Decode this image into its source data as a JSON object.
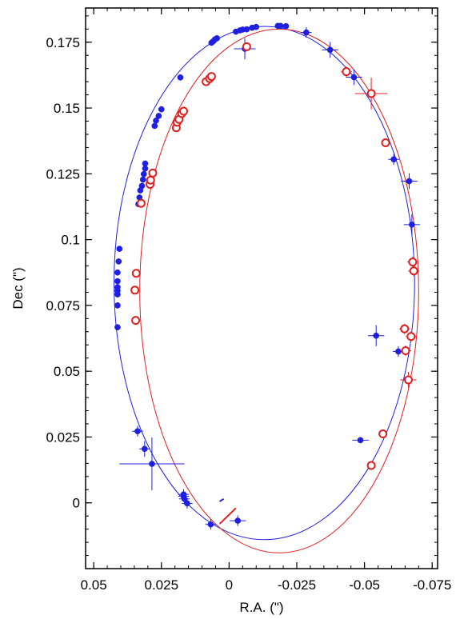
{
  "chart_data": {
    "type": "scatter",
    "title": "",
    "xlabel": "R.A. (\")",
    "ylabel": "Dec (\")",
    "xlim": [
      0.053,
      -0.077
    ],
    "ylim": [
      -0.025,
      0.188
    ],
    "x_inverted": true,
    "grid": false,
    "xticks": [
      {
        "value": 0.05,
        "label": "0.05"
      },
      {
        "value": 0.025,
        "label": "0.025"
      },
      {
        "value": 0,
        "label": "0"
      },
      {
        "value": -0.025,
        "label": "-0.025"
      },
      {
        "value": -0.05,
        "label": "-0.05"
      },
      {
        "value": -0.075,
        "label": "-0.075"
      }
    ],
    "yticks": [
      {
        "value": 0,
        "label": "0"
      },
      {
        "value": 0.025,
        "label": "0.025"
      },
      {
        "value": 0.05,
        "label": "0.05"
      },
      {
        "value": 0.075,
        "label": "0.075"
      },
      {
        "value": 0.1,
        "label": "0.1"
      },
      {
        "value": 0.125,
        "label": "0.125"
      },
      {
        "value": 0.15,
        "label": "0.15"
      },
      {
        "value": 0.175,
        "label": "0.175"
      }
    ],
    "series": [
      {
        "marker": "filled-circle",
        "color": "#1f1fe0",
        "points": [
          {
            "x": 0.0412,
            "y": 0.0667
          },
          {
            "x": 0.0412,
            "y": 0.075
          },
          {
            "x": 0.0412,
            "y": 0.0792
          },
          {
            "x": 0.0412,
            "y": 0.0806
          },
          {
            "x": 0.0412,
            "y": 0.0819
          },
          {
            "x": 0.0412,
            "y": 0.0842
          },
          {
            "x": 0.0412,
            "y": 0.0875
          },
          {
            "x": 0.0408,
            "y": 0.0917
          },
          {
            "x": 0.0405,
            "y": 0.0965
          },
          {
            "x": 0.0335,
            "y": 0.1135
          },
          {
            "x": 0.0331,
            "y": 0.116
          },
          {
            "x": 0.0328,
            "y": 0.1187
          },
          {
            "x": 0.0322,
            "y": 0.1204
          },
          {
            "x": 0.0318,
            "y": 0.1228
          },
          {
            "x": 0.0315,
            "y": 0.1249
          },
          {
            "x": 0.031,
            "y": 0.127
          },
          {
            "x": 0.031,
            "y": 0.1289
          },
          {
            "x": 0.0275,
            "y": 0.1432
          },
          {
            "x": 0.027,
            "y": 0.1452
          },
          {
            "x": 0.026,
            "y": 0.147
          },
          {
            "x": 0.025,
            "y": 0.1495
          },
          {
            "x": 0.018,
            "y": 0.1616
          },
          {
            "x": 0.0065,
            "y": 0.1748
          },
          {
            "x": 0.0058,
            "y": 0.1754
          },
          {
            "x": 0.0052,
            "y": 0.1761
          },
          {
            "x": 0.0045,
            "y": 0.1765
          },
          {
            "x": -0.0025,
            "y": 0.179
          },
          {
            "x": -0.004,
            "y": 0.1795
          },
          {
            "x": -0.005,
            "y": 0.1798
          },
          {
            "x": -0.0065,
            "y": 0.1799
          },
          {
            "x": -0.0085,
            "y": 0.1805
          },
          {
            "x": -0.01,
            "y": 0.1808
          },
          {
            "x": -0.018,
            "y": 0.1812
          },
          {
            "x": -0.019,
            "y": 0.1812
          },
          {
            "x": -0.021,
            "y": 0.1811
          },
          {
            "x": -0.0058,
            "y": 0.1725,
            "xerr": 0.004,
            "yerr": 0.004
          },
          {
            "x": -0.0285,
            "y": 0.1787,
            "xerr": 0.002,
            "yerr": 0.002
          },
          {
            "x": -0.0373,
            "y": 0.1721,
            "xerr": 0.003,
            "yerr": 0.003
          },
          {
            "x": -0.0461,
            "y": 0.1617,
            "xerr": 0.003,
            "yerr": 0.003
          },
          {
            "x": -0.0608,
            "y": 0.1305,
            "xerr": 0.002,
            "yerr": 0.002
          },
          {
            "x": -0.0665,
            "y": 0.1222,
            "xerr": 0.003,
            "yerr": 0.003
          },
          {
            "x": -0.0675,
            "y": 0.1057,
            "xerr": 0.003,
            "yerr": 0.004
          },
          {
            "x": -0.0543,
            "y": 0.0635,
            "xerr": 0.003,
            "yerr": 0.004
          },
          {
            "x": -0.0625,
            "y": 0.0575,
            "xerr": 0.002,
            "yerr": 0.002
          },
          {
            "x": -0.0485,
            "y": 0.0238,
            "xerr": 0.003,
            "yerr": 0.001
          },
          {
            "x": 0.0338,
            "y": 0.0272,
            "xerr": 0.002,
            "yerr": 0.002
          },
          {
            "x": 0.0312,
            "y": 0.0205,
            "xerr": 0.002,
            "yerr": 0.003
          },
          {
            "x": 0.0285,
            "y": 0.0148,
            "xerr": 0.012,
            "yerr": 0.01
          },
          {
            "x": 0.0168,
            "y": 0.0032,
            "xerr": 0.002,
            "yerr": 0.002
          },
          {
            "x": 0.0165,
            "y": 0.0015,
            "xerr": 0.002,
            "yerr": 0.002
          },
          {
            "x": 0.0168,
            "y": 0.0025,
            "xerr": 0.002,
            "yerr": 0.002
          },
          {
            "x": 0.0155,
            "y": -0.0002,
            "xerr": 0.002,
            "yerr": 0.002
          },
          {
            "x": 0.0068,
            "y": -0.0082,
            "xerr": 0.002,
            "yerr": 0.002
          },
          {
            "x": -0.0032,
            "y": -0.0068,
            "xerr": 0.003,
            "yerr": 0.002
          }
        ]
      },
      {
        "marker": "open-circle",
        "color": "#e01f1f",
        "points": [
          {
            "x": 0.0345,
            "y": 0.0693
          },
          {
            "x": 0.0348,
            "y": 0.0808
          },
          {
            "x": 0.0343,
            "y": 0.0872
          },
          {
            "x": 0.0325,
            "y": 0.1138
          },
          {
            "x": 0.0292,
            "y": 0.121
          },
          {
            "x": 0.029,
            "y": 0.1226
          },
          {
            "x": 0.0282,
            "y": 0.1253
          },
          {
            "x": 0.0195,
            "y": 0.1425
          },
          {
            "x": 0.0192,
            "y": 0.1446
          },
          {
            "x": 0.0185,
            "y": 0.1457
          },
          {
            "x": 0.0175,
            "y": 0.1479
          },
          {
            "x": 0.0168,
            "y": 0.1488
          },
          {
            "x": 0.0085,
            "y": 0.16
          },
          {
            "x": 0.0072,
            "y": 0.1612
          },
          {
            "x": 0.0065,
            "y": 0.162
          },
          {
            "x": -0.0065,
            "y": 0.1733
          },
          {
            "x": -0.0433,
            "y": 0.1638,
            "xerr": 0.002,
            "yerr": 0.002
          },
          {
            "x": -0.0525,
            "y": 0.1555,
            "xerr": 0.006,
            "yerr": 0.006
          },
          {
            "x": -0.0578,
            "y": 0.1368,
            "xerr": 0.001,
            "yerr": 0.001
          },
          {
            "x": -0.0678,
            "y": 0.0915,
            "xerr": 0.002,
            "yerr": 0.002
          },
          {
            "x": -0.0682,
            "y": 0.0881,
            "xerr": 0.002,
            "yerr": 0.002
          },
          {
            "x": -0.0648,
            "y": 0.0661,
            "xerr": 0.002,
            "yerr": 0.002
          },
          {
            "x": -0.0672,
            "y": 0.0632,
            "xerr": 0.002,
            "yerr": 0.002
          },
          {
            "x": -0.0652,
            "y": 0.0578,
            "xerr": 0.002,
            "yerr": 0.002
          },
          {
            "x": -0.0662,
            "y": 0.0467,
            "xerr": 0.003,
            "yerr": 0.003
          },
          {
            "x": -0.0568,
            "y": 0.0262,
            "xerr": 0.001,
            "yerr": 0.001
          },
          {
            "x": -0.0525,
            "y": 0.0142,
            "xerr": 0.001,
            "yerr": 0.001
          }
        ]
      }
    ],
    "orbits": [
      {
        "color": "#1f1fe0",
        "center": [
          -0.013,
          0.0835
        ],
        "semi_x": 0.0555,
        "semi_y": 0.0975
      },
      {
        "color": "#e01f1f",
        "center": [
          -0.0185,
          0.0805
        ],
        "semi_x": 0.0515,
        "semi_y": 0.0995
      }
    ],
    "markers": [
      {
        "color": "#e01f1f",
        "from": [
          0.0035,
          -0.008
        ],
        "to": [
          -0.0025,
          -0.002
        ]
      },
      {
        "color": "#1f1fe0",
        "from": [
          0.0035,
          0.0005
        ],
        "to": [
          0.002,
          0.0015
        ]
      }
    ]
  }
}
